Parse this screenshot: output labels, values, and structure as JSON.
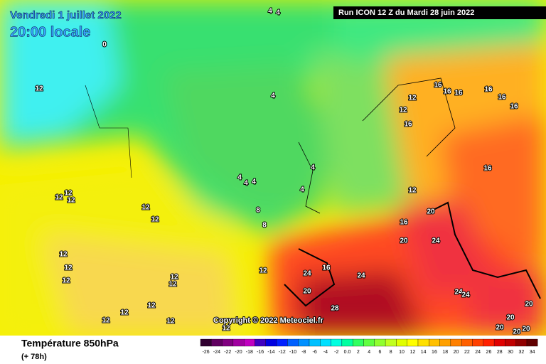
{
  "header": {
    "date": "Vendredi 1 juillet 2022",
    "time": "20:00 locale",
    "run": "Run ICON 12 Z du Mardi 28 juin 2022"
  },
  "footer": {
    "title": "Température 850hPa",
    "lead": "(+ 78h)",
    "copyright": "Copyright © 2022 Meteociel.fr"
  },
  "scale": {
    "labels": [
      "-26",
      "-24",
      "-22",
      "-20",
      "-18",
      "-16",
      "-14",
      "-12",
      "-10",
      "-8",
      "-6",
      "-4",
      "-2",
      "0.0",
      "2",
      "4",
      "6",
      "8",
      "10",
      "12",
      "14",
      "16",
      "18",
      "20",
      "22",
      "24",
      "26",
      "28",
      "30",
      "32",
      "34"
    ],
    "colors": [
      "#300030",
      "#600060",
      "#800080",
      "#a000a0",
      "#c000c0",
      "#4000c0",
      "#0000e0",
      "#0020ff",
      "#0060ff",
      "#0090ff",
      "#00c0ff",
      "#00e0ff",
      "#00ffe0",
      "#00ffa0",
      "#30ff60",
      "#60ff40",
      "#90ff30",
      "#c0ff20",
      "#e0ff00",
      "#ffff00",
      "#ffe000",
      "#ffc000",
      "#ffa000",
      "#ff8000",
      "#ff6000",
      "#ff4000",
      "#ff2000",
      "#e00000",
      "#c00000",
      "#900000",
      "#600000"
    ]
  },
  "map_labels": [
    "4",
    "4",
    "0",
    "12",
    "4",
    "4",
    "4",
    "4",
    "4",
    "4",
    "8",
    "8",
    "12",
    "12",
    "12",
    "12",
    "12",
    "12",
    "12",
    "12",
    "12",
    "12",
    "12",
    "12",
    "12",
    "12",
    "12",
    "12",
    "16",
    "16",
    "16",
    "16",
    "16",
    "16",
    "16",
    "16",
    "12",
    "12",
    "20",
    "20",
    "20",
    "24",
    "24",
    "24",
    "24",
    "28",
    "20",
    "20",
    "20",
    "20",
    "20",
    "24",
    "16",
    "12",
    "16"
  ]
}
